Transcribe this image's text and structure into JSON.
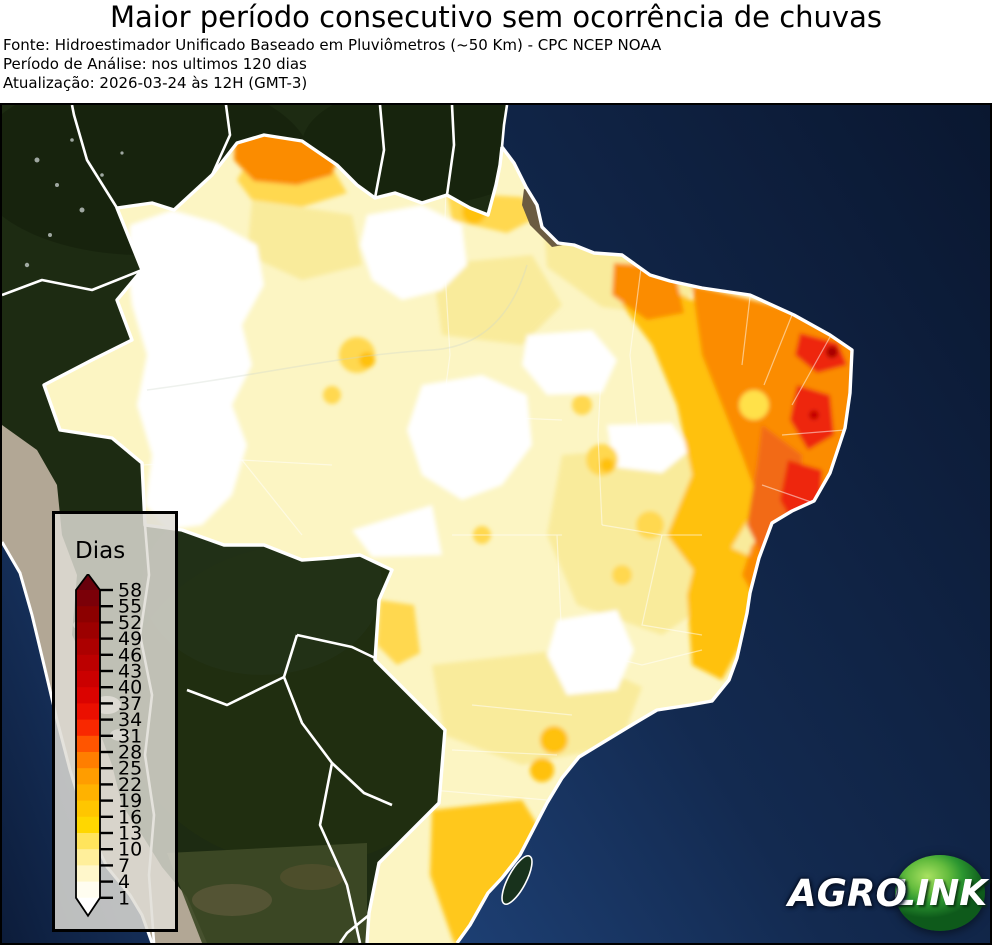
{
  "header": {
    "title": "Maior período consecutivo sem ocorrência de chuvas",
    "source_line": "Fonte: Hidroestimador Unificado Baseado em Pluviômetros (~50 Km) - CPC NCEP NOAA",
    "period_line": "Período de Análise: nos ultimos 120 dias",
    "updated_line": "Atualização: 2026-03-24 às 12H (GMT-3)"
  },
  "map": {
    "type": "contour-choropleth-over-satellite",
    "region": "Brazil",
    "unit": "dias",
    "legend": {
      "title": "Dias",
      "tick_values": [
        58,
        55,
        52,
        49,
        46,
        43,
        40,
        37,
        34,
        31,
        28,
        25,
        22,
        19,
        16,
        13,
        10,
        7,
        4,
        1
      ],
      "arrow_top_color": "#68000c",
      "band_colors_top_to_bottom": [
        "#7b0008",
        "#8c0000",
        "#9c0000",
        "#ac0000",
        "#bc0000",
        "#cb0000",
        "#db0300",
        "#eb0f00",
        "#f92800",
        "#ff5500",
        "#ff7e00",
        "#ff9d00",
        "#ffb200",
        "#ffc600",
        "#ffd700",
        "#ffe45c",
        "#ffef9b",
        "#fff7cb",
        "#fffdf0"
      ],
      "arrow_bottom_color": "#ffffff"
    },
    "palette": {
      "ocean_deep": "#0a1730",
      "ocean_coast": "#24497f",
      "forest_dark": "#1d2b12",
      "andes_tan": "#b2a795",
      "pampas_olive": "#3e4a26",
      "delta_brown": "#6b5b41",
      "country_border": "#ffffff",
      "value_white": "#ffffff",
      "value_pale": "#fcf5c3",
      "value_light": "#f9eb9b",
      "value_gold": "#ffd84f",
      "value_amber": "#ffc107",
      "value_orange": "#fb8c00",
      "value_deep_orange": "#f26b13",
      "value_red": "#ee2711",
      "value_dark_red": "#a80000"
    }
  },
  "logo": {
    "agro": "AGRO",
    "link": "LINK"
  }
}
